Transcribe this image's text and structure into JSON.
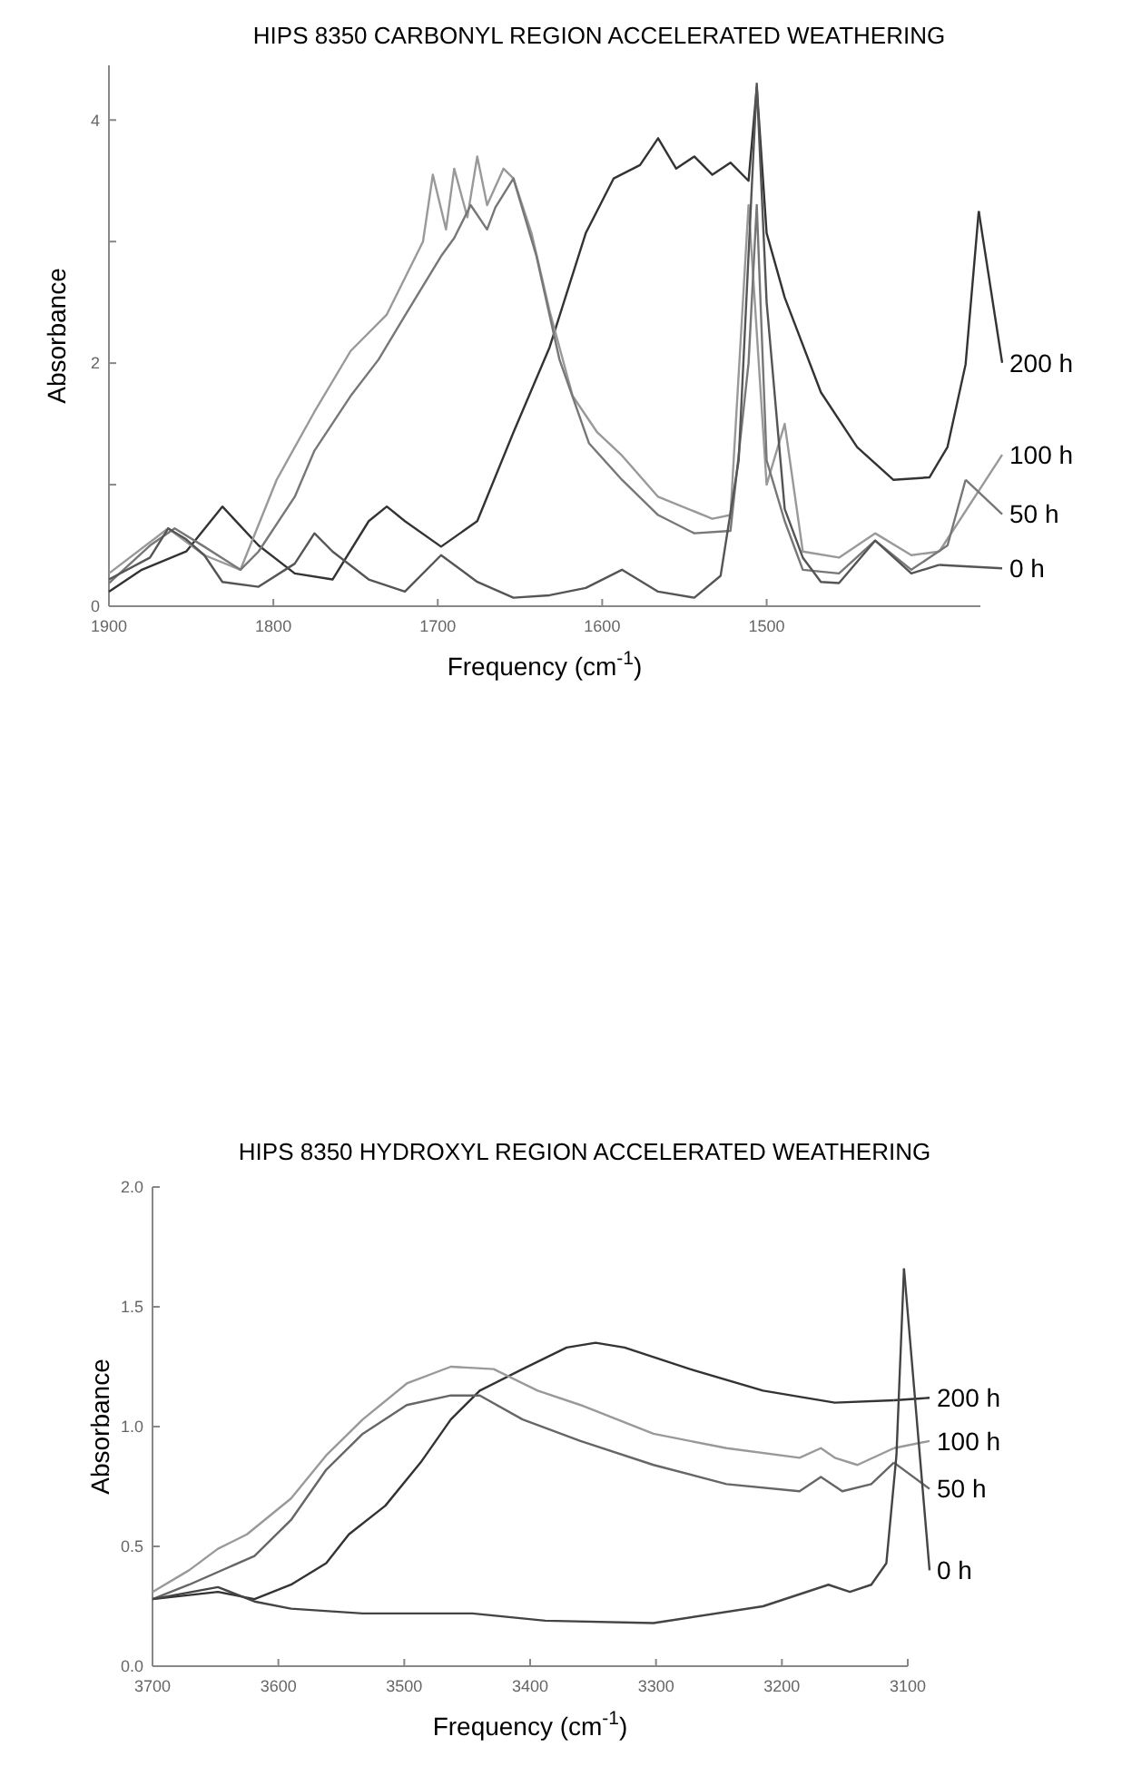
{
  "chart_data": [
    {
      "type": "line",
      "title": "HIPS 8350 CARBONYL REGION ACCELERATED WEATHERING",
      "xlabel": "Frequency (cm$^{-1}$)",
      "ylabel": "Absorbance",
      "xlim": [
        1900,
        1370
      ],
      "xticks": [
        1900,
        1800,
        1700,
        1600,
        1500
      ],
      "ylim": [
        0,
        4.45
      ],
      "yticks": [
        {
          "value": 0,
          "label": "0"
        },
        {
          "value": 1,
          "label": null
        },
        {
          "value": 2,
          "label": "2"
        },
        {
          "value": 3,
          "label": null
        },
        {
          "value": 4,
          "label": "4"
        }
      ],
      "grid": false,
      "legend": "right",
      "series": [
        {
          "name": "200 h",
          "color": "#333333",
          "x": [
            1900,
            1880,
            1853,
            1831,
            1809,
            1787,
            1764,
            1742,
            1731,
            1720,
            1698,
            1676,
            1654,
            1632,
            1610,
            1593,
            1577,
            1566,
            1555,
            1544,
            1533,
            1522,
            1511,
            1506,
            1500,
            1489,
            1467,
            1445,
            1423,
            1401,
            1390,
            1379,
            1371
          ],
          "values": [
            0.12,
            0.3,
            0.45,
            0.82,
            0.5,
            0.27,
            0.22,
            0.7,
            0.82,
            0.7,
            0.49,
            0.7,
            1.43,
            2.13,
            3.07,
            3.52,
            3.63,
            3.85,
            3.6,
            3.7,
            3.55,
            3.65,
            3.5,
            4.27,
            3.07,
            2.54,
            1.76,
            1.31,
            1.04,
            1.06,
            1.31,
            1.99,
            3.25
          ]
        },
        {
          "name": "100 h",
          "color": "#999999",
          "x": [
            1900,
            1864,
            1842,
            1820,
            1798,
            1775,
            1753,
            1731,
            1709,
            1703,
            1695,
            1690,
            1682,
            1676,
            1670,
            1660,
            1654,
            1643,
            1632,
            1618,
            1603,
            1588,
            1566,
            1533,
            1522,
            1511,
            1500,
            1489,
            1478,
            1456,
            1434,
            1412,
            1395
          ],
          "values": [
            0.27,
            0.64,
            0.42,
            0.3,
            1.04,
            1.6,
            2.1,
            2.4,
            3.0,
            3.55,
            3.1,
            3.6,
            3.2,
            3.7,
            3.3,
            3.6,
            3.52,
            3.07,
            2.43,
            1.73,
            1.43,
            1.24,
            0.9,
            0.72,
            0.75,
            3.3,
            1.0,
            1.5,
            0.45,
            0.4,
            0.6,
            0.42,
            0.45
          ]
        },
        {
          "name": "50 h",
          "color": "#777777",
          "x": [
            1900,
            1875,
            1860,
            1842,
            1820,
            1809,
            1787,
            1775,
            1753,
            1736,
            1720,
            1698,
            1690,
            1680,
            1670,
            1665,
            1654,
            1640,
            1626,
            1608,
            1588,
            1566,
            1544,
            1522,
            1511,
            1506,
            1500,
            1489,
            1478,
            1456,
            1434,
            1412,
            1390,
            1379
          ],
          "values": [
            0.19,
            0.5,
            0.64,
            0.49,
            0.3,
            0.45,
            0.9,
            1.28,
            1.73,
            2.03,
            2.39,
            2.88,
            3.03,
            3.3,
            3.1,
            3.28,
            3.52,
            2.88,
            2.03,
            1.34,
            1.04,
            0.75,
            0.6,
            0.62,
            2.0,
            3.3,
            1.2,
            0.7,
            0.3,
            0.27,
            0.54,
            0.3,
            0.5,
            1.04
          ]
        },
        {
          "name": "0 h",
          "color": "#555555",
          "x": [
            1900,
            1875,
            1864,
            1853,
            1842,
            1831,
            1809,
            1787,
            1775,
            1764,
            1742,
            1720,
            1698,
            1676,
            1654,
            1632,
            1610,
            1588,
            1566,
            1544,
            1528,
            1517,
            1506,
            1500,
            1489,
            1478,
            1467,
            1456,
            1434,
            1412,
            1395
          ],
          "values": [
            0.22,
            0.4,
            0.64,
            0.55,
            0.42,
            0.2,
            0.16,
            0.35,
            0.6,
            0.45,
            0.22,
            0.12,
            0.42,
            0.2,
            0.07,
            0.09,
            0.15,
            0.3,
            0.12,
            0.07,
            0.25,
            1.2,
            4.3,
            2.5,
            0.8,
            0.4,
            0.2,
            0.19,
            0.54,
            0.27,
            0.34
          ]
        }
      ]
    },
    {
      "type": "line",
      "title": "HIPS 8350 HYDROXYL REGION ACCELERATED WEATHERING",
      "xlabel": "Frequency (cm$^{-1}$)",
      "ylabel": "Absorbance",
      "xlim": [
        3700,
        3100
      ],
      "xticks": [
        3700,
        3600,
        3500,
        3400,
        3300,
        3200,
        3100
      ],
      "ylim": [
        0,
        2
      ],
      "yticks": [
        {
          "value": 0,
          "label": "0.0"
        },
        {
          "value": 0.5,
          "label": "0.5"
        },
        {
          "value": 1,
          "label": "1.0"
        },
        {
          "value": 1.5,
          "label": "1.5"
        },
        {
          "value": 2,
          "label": "2.0"
        }
      ],
      "grid": false,
      "legend": "right",
      "series": [
        {
          "name": "200 h",
          "color": "#333333",
          "x": [
            3700,
            3648,
            3619,
            3590,
            3562,
            3544,
            3515,
            3487,
            3463,
            3440,
            3406,
            3371,
            3348,
            3325,
            3273,
            3215,
            3158,
            3111
          ],
          "values": [
            0.28,
            0.31,
            0.28,
            0.34,
            0.43,
            0.55,
            0.67,
            0.85,
            1.03,
            1.15,
            1.24,
            1.33,
            1.35,
            1.33,
            1.24,
            1.15,
            1.1,
            1.11
          ]
        },
        {
          "name": "100 h",
          "color": "#999999",
          "x": [
            3700,
            3671,
            3648,
            3625,
            3590,
            3562,
            3533,
            3498,
            3463,
            3429,
            3394,
            3360,
            3302,
            3244,
            3186,
            3169,
            3158,
            3140,
            3111
          ],
          "values": [
            0.31,
            0.4,
            0.49,
            0.55,
            0.7,
            0.88,
            1.03,
            1.18,
            1.25,
            1.24,
            1.15,
            1.09,
            0.97,
            0.91,
            0.87,
            0.91,
            0.87,
            0.84,
            0.91
          ]
        },
        {
          "name": "50 h",
          "color": "#666666",
          "x": [
            3700,
            3671,
            3619,
            3590,
            3562,
            3533,
            3498,
            3463,
            3440,
            3406,
            3360,
            3302,
            3244,
            3186,
            3169,
            3152,
            3129,
            3111
          ],
          "values": [
            0.28,
            0.34,
            0.46,
            0.61,
            0.82,
            0.97,
            1.09,
            1.13,
            1.13,
            1.03,
            0.94,
            0.84,
            0.76,
            0.73,
            0.79,
            0.73,
            0.76,
            0.85
          ]
        },
        {
          "name": "0 h",
          "color": "#444444",
          "x": [
            3700,
            3648,
            3619,
            3590,
            3533,
            3446,
            3388,
            3302,
            3215,
            3163,
            3146,
            3129,
            3117,
            3109,
            3103
          ],
          "values": [
            0.28,
            0.33,
            0.27,
            0.24,
            0.22,
            0.22,
            0.19,
            0.18,
            0.25,
            0.34,
            0.31,
            0.34,
            0.43,
            0.88,
            1.66
          ]
        }
      ]
    }
  ]
}
